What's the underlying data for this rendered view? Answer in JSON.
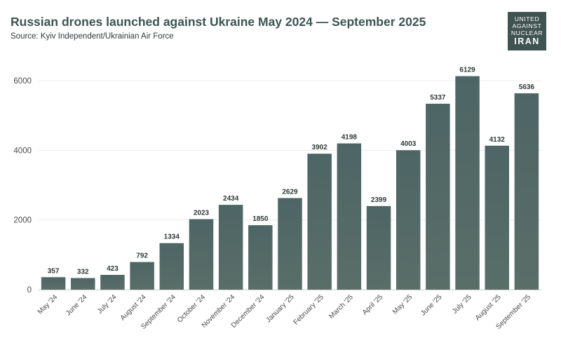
{
  "header": {
    "title": "Russian drones launched against Ukraine May 2024 — September 2025",
    "source": "Source: Kyiv Independent/Ukrainian Air Force"
  },
  "logo": {
    "line1": "UNITED",
    "line2": "AGAINST",
    "line3": "NUCLEAR",
    "line4": "IRAN"
  },
  "colors": {
    "bar_top": "#4d6565",
    "bar_bottom": "#5a6e68",
    "title": "#3b5552",
    "gridline": "#ececec",
    "baseline": "#cccccc"
  },
  "chart_data": {
    "type": "bar",
    "title": "Russian drones launched against Ukraine May 2024 — September 2025",
    "xlabel": "",
    "ylabel": "",
    "ylim": [
      0,
      6000
    ],
    "yticks": [
      0,
      2000,
      4000,
      6000
    ],
    "grid": true,
    "categories": [
      "May '24",
      "June '24",
      "July '24",
      "August '24",
      "September '24",
      "October '24",
      "November '24",
      "December '24",
      "January '25",
      "February '25",
      "March '25",
      "April '25",
      "May '25",
      "June '25",
      "July '25",
      "August '25",
      "September '25"
    ],
    "values": [
      357,
      332,
      423,
      792,
      1334,
      2023,
      2434,
      1850,
      2629,
      3902,
      4198,
      2399,
      4003,
      5337,
      6129,
      4132,
      5636
    ]
  }
}
